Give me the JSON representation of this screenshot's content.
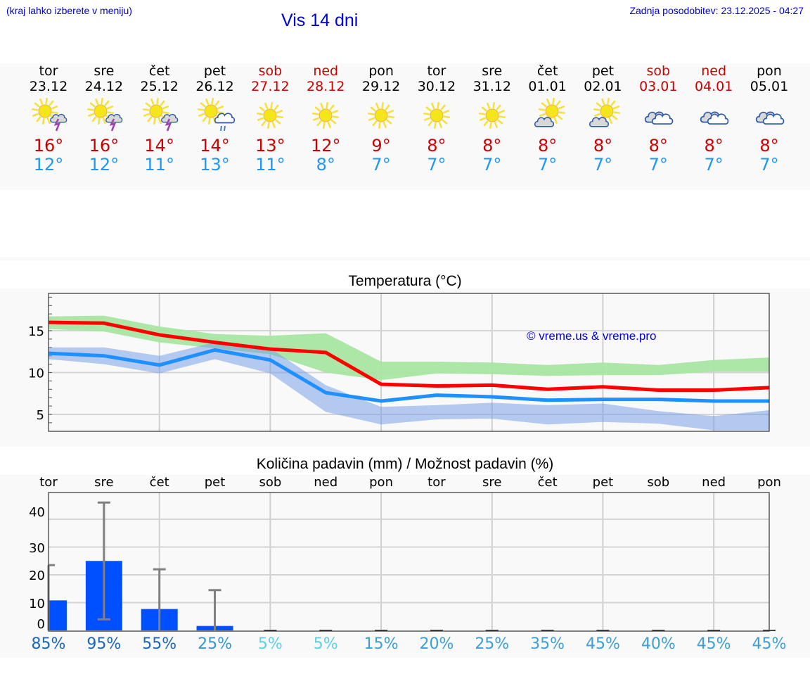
{
  "header": {
    "hint": "(kraj lahko izberete v meniju)",
    "title": "Vis 14 dni",
    "updated": "Zadnja posodobitev: 23.12.2025 - 04:27"
  },
  "days": [
    {
      "name": "tor",
      "date": "23.12",
      "icon": "sun-cloud-thunder-icon",
      "tmax": "16°",
      "tmin": "12°",
      "weekend": false
    },
    {
      "name": "sre",
      "date": "24.12",
      "icon": "sun-cloud-thunder-icon",
      "tmax": "16°",
      "tmin": "12°",
      "weekend": false
    },
    {
      "name": "čet",
      "date": "25.12",
      "icon": "sun-cloud-thunder-icon",
      "tmax": "14°",
      "tmin": "11°",
      "weekend": false
    },
    {
      "name": "pet",
      "date": "26.12",
      "icon": "sun-cloud-rain-icon",
      "tmax": "14°",
      "tmin": "13°",
      "weekend": false
    },
    {
      "name": "sob",
      "date": "27.12",
      "icon": "sun-icon",
      "tmax": "13°",
      "tmin": "11°",
      "weekend": true
    },
    {
      "name": "ned",
      "date": "28.12",
      "icon": "sun-icon",
      "tmax": "12°",
      "tmin": "8°",
      "weekend": true
    },
    {
      "name": "pon",
      "date": "29.12",
      "icon": "sun-icon",
      "tmax": "9°",
      "tmin": "7°",
      "weekend": false
    },
    {
      "name": "tor",
      "date": "30.12",
      "icon": "sun-icon",
      "tmax": "8°",
      "tmin": "7°",
      "weekend": false
    },
    {
      "name": "sre",
      "date": "31.12",
      "icon": "sun-icon",
      "tmax": "8°",
      "tmin": "7°",
      "weekend": false
    },
    {
      "name": "čet",
      "date": "01.01",
      "icon": "partly-cloudy-icon",
      "tmax": "8°",
      "tmin": "7°",
      "weekend": false
    },
    {
      "name": "pet",
      "date": "02.01",
      "icon": "partly-cloudy-icon",
      "tmax": "8°",
      "tmin": "7°",
      "weekend": false
    },
    {
      "name": "sob",
      "date": "03.01",
      "icon": "cloudy-icon",
      "tmax": "8°",
      "tmin": "7°",
      "weekend": true
    },
    {
      "name": "ned",
      "date": "04.01",
      "icon": "cloudy-icon",
      "tmax": "8°",
      "tmin": "7°",
      "weekend": true
    },
    {
      "name": "pon",
      "date": "05.01",
      "icon": "cloudy-icon",
      "tmax": "8°",
      "tmin": "7°",
      "weekend": false
    }
  ],
  "colors": {
    "max_line": "#ff0000",
    "min_line": "#1e90ff",
    "max_band": "#a8e6a3",
    "min_band": "#a9c4f0",
    "overlap_band": "#7dc9a8",
    "precip_bar": "#0050ff",
    "error_bar": "#808080",
    "weekend_text": "#cc0000",
    "tmax_text": "#cc0000",
    "tmin_text": "#2196f3"
  },
  "temp_chart": {
    "watermark": "© vreme.us & vreme.pro"
  },
  "precip_chart": {
    "weekdays": [
      "tor",
      "sre",
      "čet",
      "pet",
      "sob",
      "ned",
      "pon",
      "tor",
      "sre",
      "čet",
      "pet",
      "sob",
      "ned",
      "pon"
    ],
    "percents": [
      "85%",
      "95%",
      "55%",
      "25%",
      "5%",
      "5%",
      "15%",
      "20%",
      "25%",
      "35%",
      "45%",
      "40%",
      "45%",
      "45%"
    ],
    "percent_colors": [
      "#1a66b8",
      "#1a66b8",
      "#1a66b8",
      "#3399cc",
      "#5bd0e6",
      "#5bd0e6",
      "#3d9fd4",
      "#3d9fd4",
      "#3d9fd4",
      "#3d9fd4",
      "#3d9fd4",
      "#3d9fd4",
      "#3d9fd4",
      "#3d9fd4"
    ]
  },
  "chart_data": [
    {
      "type": "line",
      "title": "Temperatura (°C)",
      "xlabel": "",
      "ylabel": "",
      "categories": [
        "23.12",
        "24.12",
        "25.12",
        "26.12",
        "27.12",
        "28.12",
        "29.12",
        "30.12",
        "31.12",
        "01.01",
        "02.01",
        "03.01",
        "04.01",
        "05.01"
      ],
      "series": [
        {
          "name": "max",
          "values": [
            16.0,
            15.9,
            14.5,
            13.6,
            12.8,
            12.4,
            8.6,
            8.4,
            8.5,
            8.0,
            8.3,
            7.9,
            7.9,
            8.2
          ]
        },
        {
          "name": "min",
          "values": [
            12.3,
            12.0,
            10.9,
            12.7,
            11.5,
            7.6,
            6.6,
            7.3,
            7.1,
            6.7,
            6.8,
            6.8,
            6.6,
            6.6
          ]
        },
        {
          "name": "max_range_low",
          "values": [
            15.2,
            14.9,
            13.6,
            12.9,
            12.2,
            10.0,
            9.1,
            9.9,
            9.8,
            9.6,
            9.7,
            9.7,
            10.1,
            10.1
          ]
        },
        {
          "name": "max_range_high",
          "values": [
            16.7,
            16.8,
            15.5,
            14.6,
            14.4,
            14.7,
            11.3,
            11.3,
            11.2,
            10.9,
            11.2,
            10.9,
            11.5,
            11.8
          ]
        },
        {
          "name": "min_range_low",
          "values": [
            11.6,
            11.0,
            9.9,
            11.6,
            9.9,
            5.3,
            3.8,
            4.4,
            4.5,
            3.8,
            4.1,
            3.9,
            3.1,
            3.1
          ]
        },
        {
          "name": "min_range_high",
          "values": [
            13.0,
            13.0,
            12.0,
            13.6,
            12.9,
            8.5,
            5.9,
            6.1,
            6.4,
            6.1,
            6.3,
            5.4,
            4.8,
            5.5
          ]
        }
      ],
      "ylim": [
        3,
        19.5
      ],
      "yticks": [
        5,
        10,
        15
      ],
      "grid": true,
      "annotation": "© vreme.us & vreme.pro"
    },
    {
      "type": "bar",
      "title": "Količina padavin (mm) / Možnost padavin (%)",
      "categories": [
        "tor",
        "sre",
        "čet",
        "pet",
        "sob",
        "ned",
        "pon",
        "tor",
        "sre",
        "čet",
        "pet",
        "sob",
        "ned",
        "pon"
      ],
      "series": [
        {
          "name": "precip_mm",
          "values": [
            10.8,
            25.0,
            7.7,
            1.6,
            0,
            0,
            0,
            0,
            0,
            0,
            0,
            0,
            0,
            0
          ]
        },
        {
          "name": "precip_max_mm",
          "values": [
            23.5,
            46.0,
            22.0,
            14.5,
            0,
            0,
            0,
            0,
            0,
            0,
            0,
            0,
            0,
            0
          ]
        },
        {
          "name": "precip_min_mm",
          "values": [
            0,
            4.0,
            0,
            0,
            0,
            0,
            0,
            0,
            0,
            0,
            0,
            0,
            0,
            0
          ]
        },
        {
          "name": "probability_pct",
          "values": [
            85,
            95,
            55,
            25,
            5,
            5,
            15,
            20,
            25,
            35,
            45,
            40,
            45,
            45
          ]
        }
      ],
      "ylim": [
        0,
        48
      ],
      "yticks": [
        0,
        10,
        20,
        30,
        40
      ],
      "grid": true
    }
  ]
}
